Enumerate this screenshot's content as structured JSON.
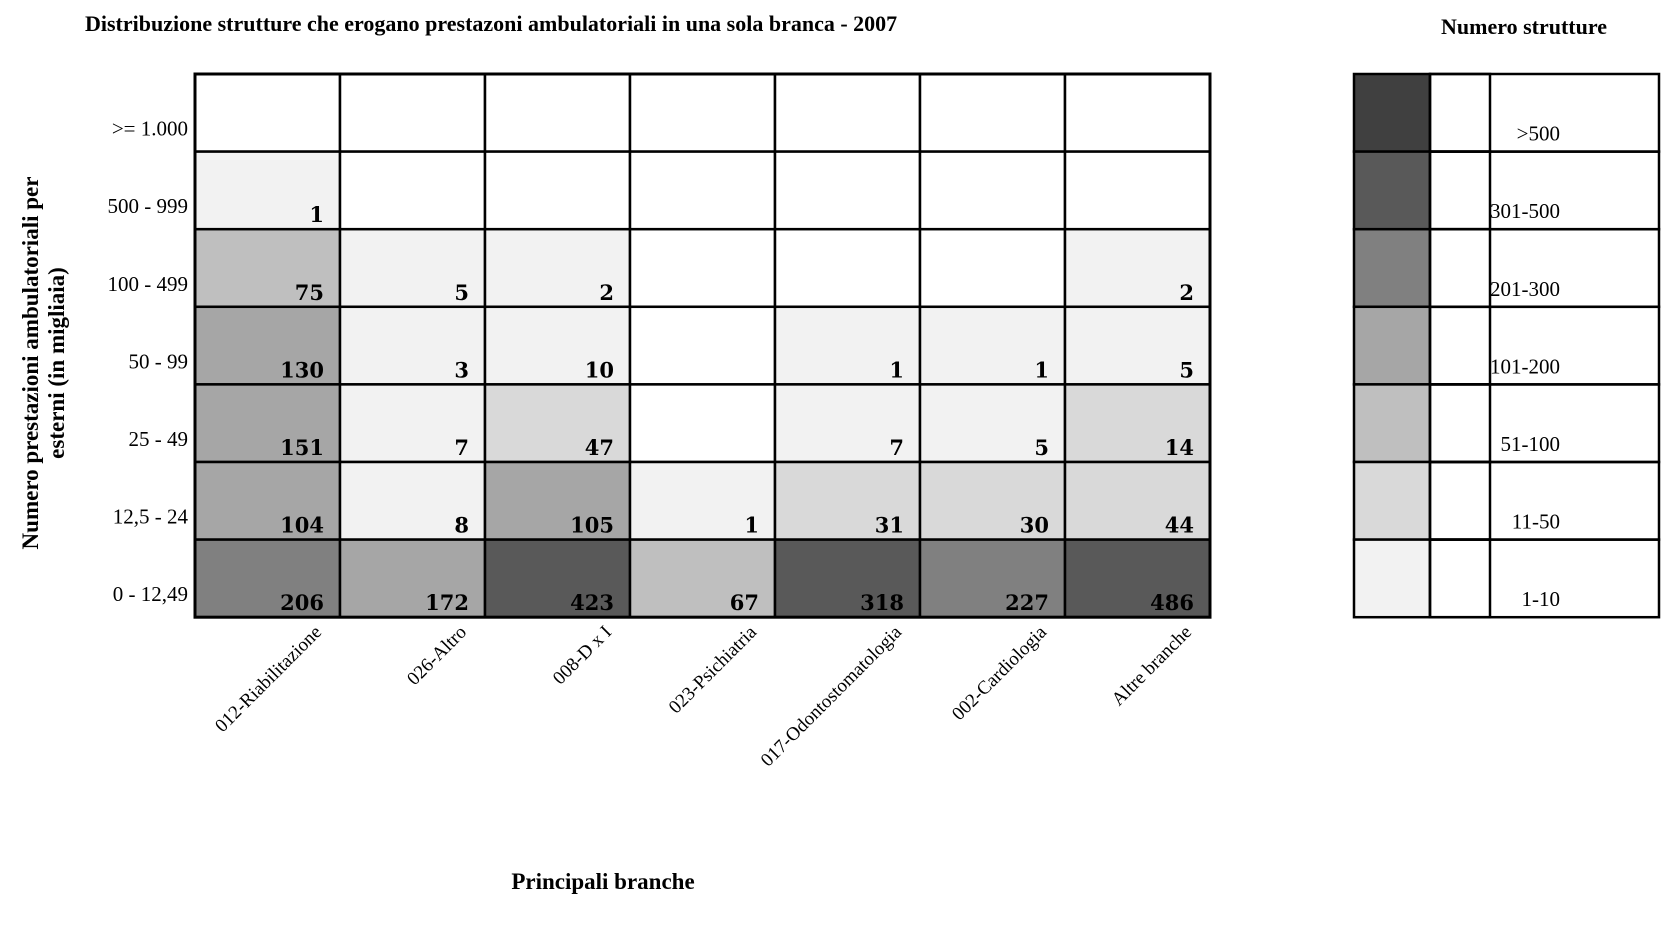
{
  "chart_data": {
    "type": "heatmap",
    "title": "Distribuzione strutture che erogano prestazoni ambulatoriali in una sola branca - 2007",
    "xlabel": "Principali branche",
    "ylabel_lines": [
      "Numero prestazioni ambulatoriali per",
      "esterni (in migliaia)"
    ],
    "columns": [
      "012-Riabilitazione",
      "026-Altro",
      "008-D x I",
      "023-Psichiatria",
      "017-Odontostomatologia",
      "002-Cardiologia",
      "Altre branche"
    ],
    "rows": [
      ">= 1.000",
      "500 - 999",
      "100 - 499",
      "50 - 99",
      "25 - 49",
      "12,5 - 24",
      "0 - 12,49"
    ],
    "values": [
      [
        null,
        null,
        null,
        null,
        null,
        null,
        null
      ],
      [
        1,
        null,
        null,
        null,
        null,
        null,
        null
      ],
      [
        75,
        5,
        2,
        null,
        null,
        null,
        2
      ],
      [
        130,
        3,
        10,
        null,
        1,
        1,
        5
      ],
      [
        151,
        7,
        47,
        null,
        7,
        5,
        14
      ],
      [
        104,
        8,
        105,
        1,
        31,
        30,
        44
      ],
      [
        206,
        172,
        423,
        67,
        318,
        227,
        486
      ]
    ],
    "legend": {
      "title": "Numero strutture",
      "bins": [
        {
          "label": ">500",
          "min": 501,
          "max": null,
          "color": "#404040"
        },
        {
          "label": "301-500",
          "min": 301,
          "max": 500,
          "color": "#595959"
        },
        {
          "label": "201-300",
          "min": 201,
          "max": 300,
          "color": "#808080"
        },
        {
          "label": "101-200",
          "min": 101,
          "max": 200,
          "color": "#a6a6a6"
        },
        {
          "label": "51-100",
          "min": 51,
          "max": 100,
          "color": "#bfbfbf"
        },
        {
          "label": "11-50",
          "min": 11,
          "max": 50,
          "color": "#d9d9d9"
        },
        {
          "label": "1-10",
          "min": 1,
          "max": 10,
          "color": "#f2f2f2"
        }
      ]
    },
    "empty_color": "#ffffff"
  }
}
